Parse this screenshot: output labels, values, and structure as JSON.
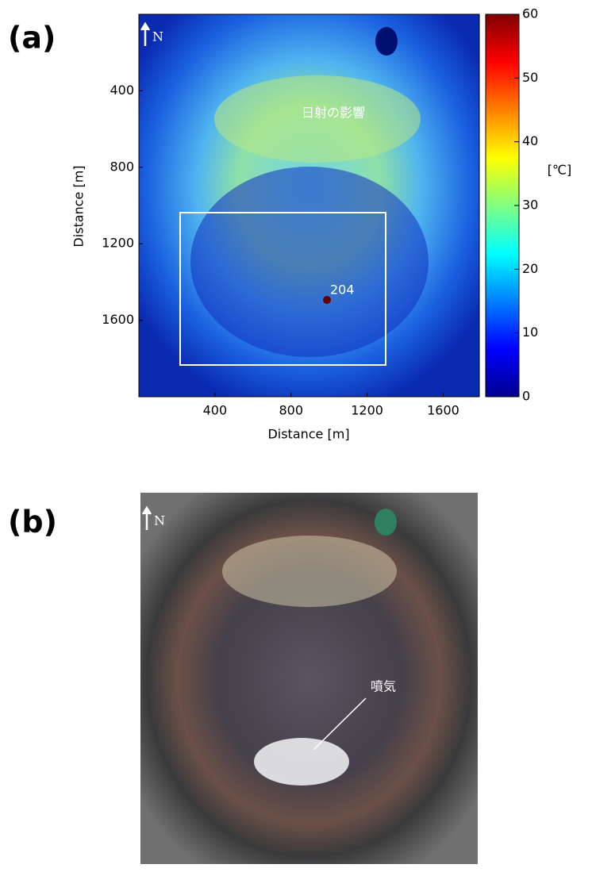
{
  "chart_data": [
    {
      "type": "thermal-image",
      "panel_label": "(a)",
      "north": "N",
      "xlabel": "Distance [m]",
      "ylabel": "Distance [m]",
      "xlim": [
        0,
        1790
      ],
      "ylim": [
        0,
        2000
      ],
      "y_inverted": true,
      "xticks": [
        400,
        800,
        1200,
        1600
      ],
      "yticks": [
        400,
        800,
        1200,
        1600
      ],
      "annotations": [
        "日射の影響",
        "204"
      ],
      "colorbar": {
        "label": "[℃]",
        "lim": [
          0,
          60
        ],
        "ticks": [
          0,
          10,
          20,
          30,
          40,
          50,
          60
        ],
        "colormap": "jet"
      }
    },
    {
      "type": "photo",
      "panel_label": "(b)",
      "north": "N",
      "annotations": [
        "噴気"
      ]
    }
  ]
}
